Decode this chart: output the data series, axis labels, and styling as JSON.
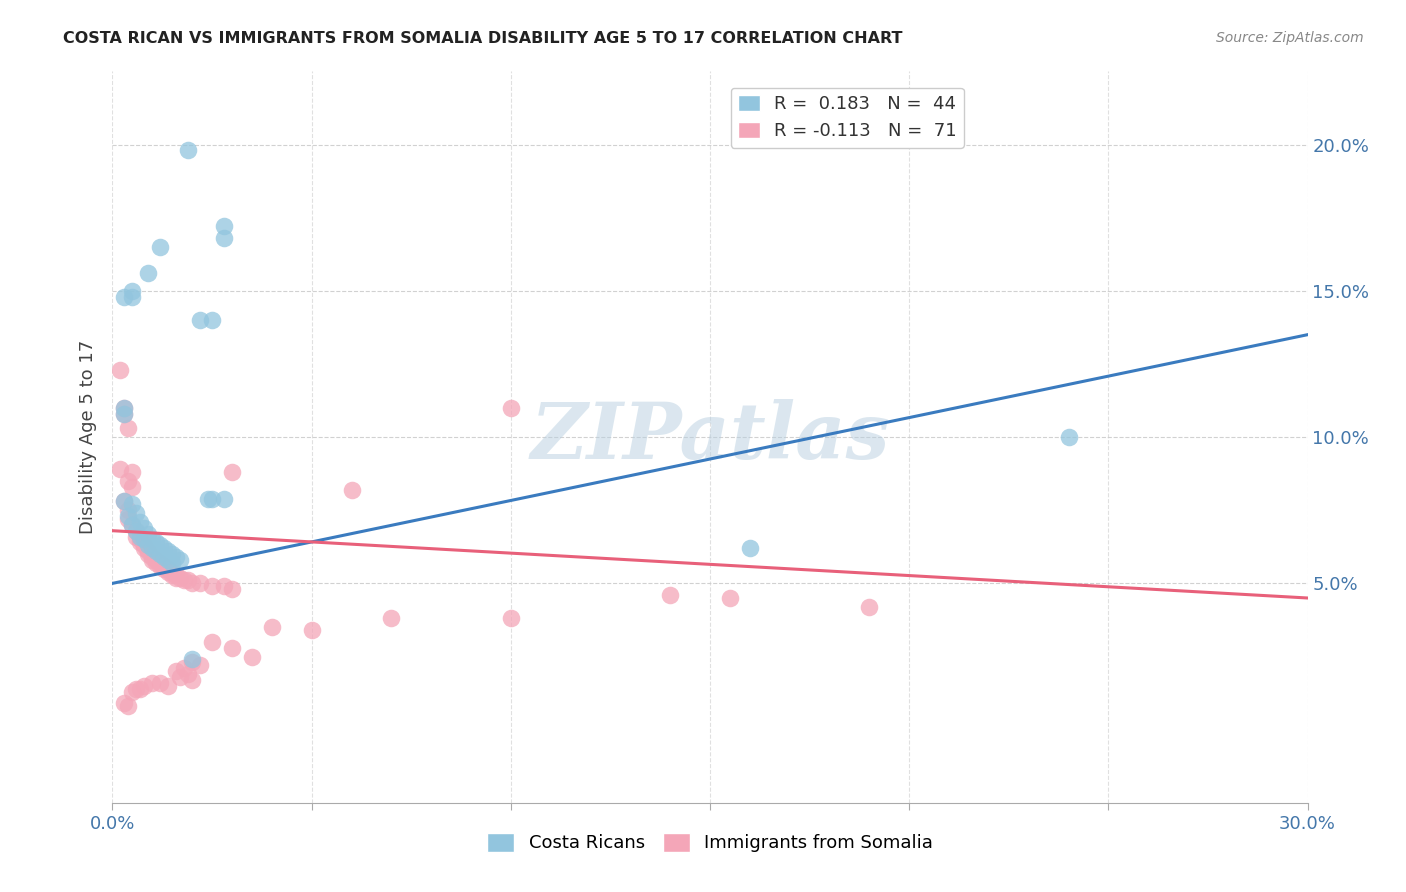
{
  "title": "COSTA RICAN VS IMMIGRANTS FROM SOMALIA DISABILITY AGE 5 TO 17 CORRELATION CHART",
  "source": "Source: ZipAtlas.com",
  "ylabel_label": "Disability Age 5 to 17",
  "xmin": 0.0,
  "xmax": 0.3,
  "ymin": -0.025,
  "ymax": 0.225,
  "watermark": "ZIPatlas",
  "color_blue": "#92c5de",
  "color_pink": "#f4a6b8",
  "line_blue": "#3a7bbf",
  "line_pink": "#e8607a",
  "blue_scatter": [
    [
      0.019,
      0.198
    ],
    [
      0.028,
      0.172
    ],
    [
      0.028,
      0.168
    ],
    [
      0.012,
      0.165
    ],
    [
      0.009,
      0.156
    ],
    [
      0.022,
      0.14
    ],
    [
      0.005,
      0.148
    ],
    [
      0.005,
      0.15
    ],
    [
      0.003,
      0.148
    ],
    [
      0.025,
      0.14
    ],
    [
      0.003,
      0.108
    ],
    [
      0.003,
      0.11
    ],
    [
      0.005,
      0.077
    ],
    [
      0.003,
      0.078
    ],
    [
      0.006,
      0.074
    ],
    [
      0.004,
      0.073
    ],
    [
      0.007,
      0.071
    ],
    [
      0.005,
      0.07
    ],
    [
      0.008,
      0.069
    ],
    [
      0.006,
      0.068
    ],
    [
      0.009,
      0.067
    ],
    [
      0.007,
      0.066
    ],
    [
      0.01,
      0.065
    ],
    [
      0.008,
      0.065
    ],
    [
      0.011,
      0.064
    ],
    [
      0.009,
      0.063
    ],
    [
      0.012,
      0.063
    ],
    [
      0.01,
      0.062
    ],
    [
      0.013,
      0.062
    ],
    [
      0.011,
      0.061
    ],
    [
      0.014,
      0.061
    ],
    [
      0.012,
      0.06
    ],
    [
      0.015,
      0.06
    ],
    [
      0.013,
      0.059
    ],
    [
      0.016,
      0.059
    ],
    [
      0.014,
      0.058
    ],
    [
      0.017,
      0.058
    ],
    [
      0.015,
      0.057
    ],
    [
      0.024,
      0.079
    ],
    [
      0.028,
      0.079
    ],
    [
      0.025,
      0.079
    ],
    [
      0.16,
      0.062
    ],
    [
      0.24,
      0.1
    ],
    [
      0.02,
      0.024
    ]
  ],
  "pink_scatter": [
    [
      0.002,
      0.123
    ],
    [
      0.003,
      0.11
    ],
    [
      0.003,
      0.108
    ],
    [
      0.004,
      0.103
    ],
    [
      0.002,
      0.089
    ],
    [
      0.004,
      0.085
    ],
    [
      0.005,
      0.088
    ],
    [
      0.005,
      0.083
    ],
    [
      0.003,
      0.078
    ],
    [
      0.004,
      0.075
    ],
    [
      0.004,
      0.072
    ],
    [
      0.005,
      0.07
    ],
    [
      0.006,
      0.068
    ],
    [
      0.006,
      0.066
    ],
    [
      0.007,
      0.065
    ],
    [
      0.007,
      0.064
    ],
    [
      0.008,
      0.063
    ],
    [
      0.008,
      0.062
    ],
    [
      0.009,
      0.061
    ],
    [
      0.009,
      0.06
    ],
    [
      0.01,
      0.059
    ],
    [
      0.01,
      0.058
    ],
    [
      0.011,
      0.058
    ],
    [
      0.011,
      0.057
    ],
    [
      0.012,
      0.057
    ],
    [
      0.012,
      0.056
    ],
    [
      0.013,
      0.056
    ],
    [
      0.013,
      0.055
    ],
    [
      0.014,
      0.055
    ],
    [
      0.014,
      0.054
    ],
    [
      0.015,
      0.054
    ],
    [
      0.015,
      0.053
    ],
    [
      0.016,
      0.053
    ],
    [
      0.016,
      0.052
    ],
    [
      0.017,
      0.052
    ],
    [
      0.018,
      0.051
    ],
    [
      0.019,
      0.051
    ],
    [
      0.02,
      0.05
    ],
    [
      0.022,
      0.05
    ],
    [
      0.025,
      0.049
    ],
    [
      0.028,
      0.049
    ],
    [
      0.03,
      0.048
    ],
    [
      0.1,
      0.11
    ],
    [
      0.03,
      0.088
    ],
    [
      0.06,
      0.082
    ],
    [
      0.14,
      0.046
    ],
    [
      0.155,
      0.045
    ],
    [
      0.19,
      0.042
    ],
    [
      0.04,
      0.035
    ],
    [
      0.05,
      0.034
    ],
    [
      0.07,
      0.038
    ],
    [
      0.1,
      0.038
    ],
    [
      0.025,
      0.03
    ],
    [
      0.03,
      0.028
    ],
    [
      0.035,
      0.025
    ],
    [
      0.02,
      0.023
    ],
    [
      0.022,
      0.022
    ],
    [
      0.018,
      0.021
    ],
    [
      0.016,
      0.02
    ],
    [
      0.017,
      0.018
    ],
    [
      0.019,
      0.019
    ],
    [
      0.02,
      0.017
    ],
    [
      0.012,
      0.016
    ],
    [
      0.01,
      0.016
    ],
    [
      0.014,
      0.015
    ],
    [
      0.008,
      0.015
    ],
    [
      0.006,
      0.014
    ],
    [
      0.007,
      0.014
    ],
    [
      0.005,
      0.013
    ],
    [
      0.003,
      0.009
    ],
    [
      0.004,
      0.008
    ]
  ],
  "blue_line_x": [
    0.0,
    0.3
  ],
  "blue_line_y": [
    0.05,
    0.135
  ],
  "pink_line_x": [
    0.0,
    0.3
  ],
  "pink_line_y": [
    0.068,
    0.045
  ],
  "xticks": [
    0.0,
    0.05,
    0.1,
    0.15,
    0.2,
    0.25,
    0.3
  ],
  "yticks": [
    0.05,
    0.1,
    0.15,
    0.2
  ],
  "xtick_labels_show": [
    "0.0%",
    "",
    "",
    "",
    "",
    "",
    "30.0%"
  ],
  "ytick_labels_right": [
    "5.0%",
    "10.0%",
    "15.0%",
    "20.0%"
  ]
}
